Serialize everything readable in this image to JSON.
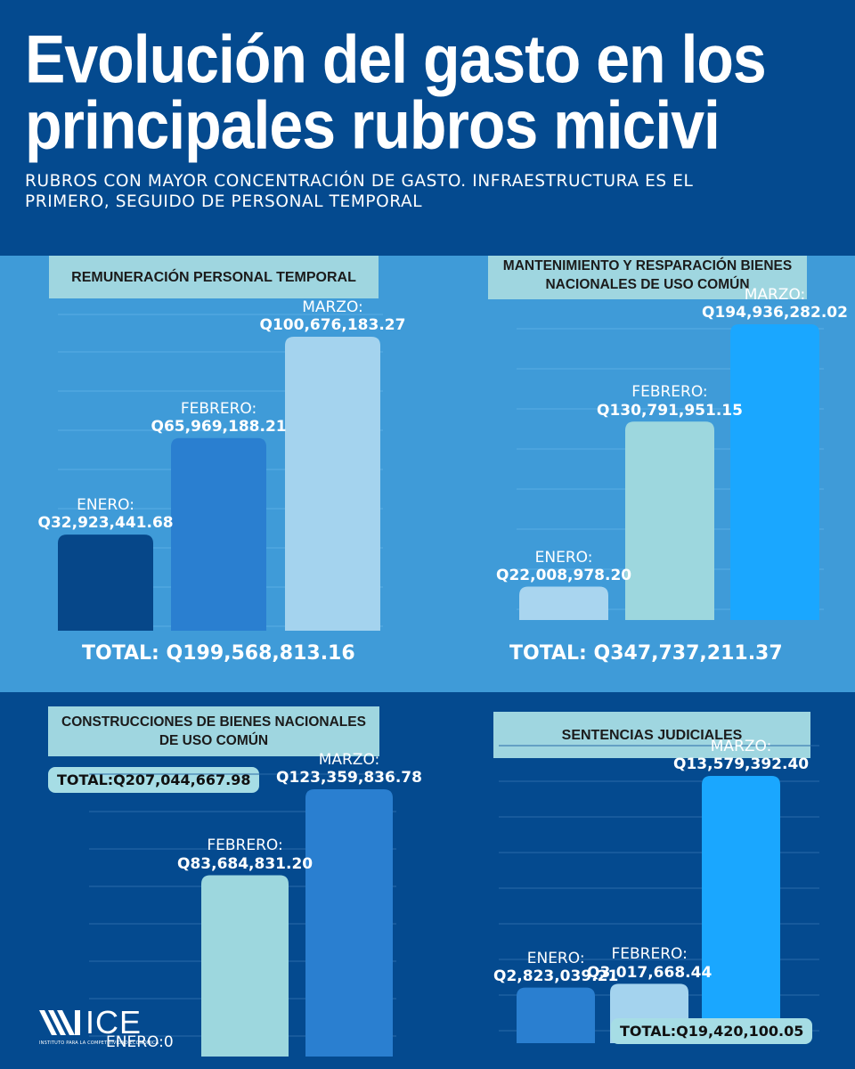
{
  "header": {
    "title": "Evolución del gasto en los principales rubros micivi",
    "subtitle": "RUBROS CON MAYOR CONCENTRACIÓN DE GASTO. INFRAESTRUCTURA ES EL PRIMERO, SEGUIDO DE PERSONAL TEMPORAL"
  },
  "chart_data": [
    {
      "type": "bar",
      "title": "REMUNERACIÓN PERSONAL TEMPORAL",
      "categories": [
        "ENERO:",
        "FEBRERO:",
        "MARZO:"
      ],
      "values": [
        32923441.68,
        65969188.21,
        100676183.27
      ],
      "value_labels": [
        "Q32,923,441.68",
        "Q65,969,188.21",
        "Q100,676,183.27"
      ],
      "bar_colors": [
        "#064789",
        "#2a7fd0",
        "#a4d3ee"
      ],
      "total": "TOTAL: Q199,568,813.16",
      "grid": true,
      "ylim": [
        0,
        130000000
      ]
    },
    {
      "type": "bar",
      "title": "MANTENIMIENTO Y RESPARACIÓN BIENES NACIONALES DE USO COMÚN",
      "categories": [
        "ENERO:",
        "FEBRERO:",
        "MARZO:"
      ],
      "values": [
        22008978.2,
        130791951.15,
        194936282.02
      ],
      "value_labels": [
        "Q22,008,978.20",
        "Q130,791,951.15",
        "Q194,936,282.02"
      ],
      "bar_colors": [
        "#a9d5ef",
        "#9dd7de",
        "#1aa7ff"
      ],
      "total": "TOTAL: Q347,737,211.37",
      "grid": true,
      "ylim": [
        0,
        200000000
      ]
    },
    {
      "type": "bar",
      "title": "CONSTRUCCIONES DE BIENES NACIONALES DE USO COMÚN",
      "categories": [
        "ENERO:",
        "FEBRERO:",
        "MARZO:"
      ],
      "values": [
        0,
        83684831.2,
        123359836.78
      ],
      "value_labels": [
        "0",
        "Q83,684,831.20",
        "Q123,359,836.78"
      ],
      "bar_colors": [
        "#2a7fd0",
        "#9dd7de",
        "#2a7fd0"
      ],
      "total": "TOTAL:Q207,044,667.98",
      "grid": true,
      "ylim": [
        0,
        130000000
      ]
    },
    {
      "type": "bar",
      "title": "SENTENCIAS JUDICIALES",
      "categories": [
        "ENERO:",
        "FEBRERO:",
        "MARZO:"
      ],
      "values": [
        2823039.21,
        3017668.44,
        13579392.4
      ],
      "value_labels": [
        "Q2,823,039.21",
        "Q3,017,668.44",
        "Q13,579,392.40"
      ],
      "bar_colors": [
        "#2a7fd0",
        "#a4d3ee",
        "#1aa7ff"
      ],
      "total": "TOTAL:Q19,420,100.05",
      "grid": true,
      "ylim": [
        0,
        14000000
      ]
    }
  ],
  "logo": {
    "text": "ICE",
    "subtext": "INSTITUTO PARA LA COMPETITIVIDAD ECONÓMICA"
  }
}
